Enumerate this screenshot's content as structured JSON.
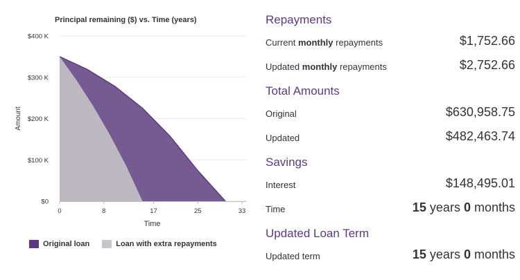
{
  "chart_data": {
    "type": "area",
    "title": "Principal remaining ($) vs. Time (years)",
    "xlabel": "Time",
    "ylabel": "Amount",
    "xlim": [
      0,
      33
    ],
    "ylim": [
      0,
      400000
    ],
    "x_ticks": [
      0,
      8,
      17,
      25,
      33
    ],
    "y_ticks": [
      {
        "value": 0,
        "label": "$0"
      },
      {
        "value": 100000,
        "label": "$100 K"
      },
      {
        "value": 200000,
        "label": "$200 K"
      },
      {
        "value": 300000,
        "label": "$300 K"
      },
      {
        "value": 400000,
        "label": "$400 K"
      }
    ],
    "grid": true,
    "legend_position": "bottom-left",
    "series": [
      {
        "name": "Original loan",
        "color": "#765b93",
        "x": [
          0,
          5,
          10,
          15,
          20,
          25,
          30
        ],
        "y": [
          350000,
          319000,
          278000,
          225000,
          157000,
          74000,
          0
        ]
      },
      {
        "name": "Loan with extra repayments",
        "color": "#bcb7c1",
        "x": [
          0,
          3,
          6,
          9,
          12,
          15
        ],
        "y": [
          350000,
          294000,
          232000,
          163000,
          87000,
          0
        ]
      }
    ]
  },
  "panel": {
    "repayments": {
      "title": "Repayments",
      "current": {
        "pre": "Current ",
        "bold": "monthly",
        "post": " repayments",
        "value": "$1,752.66"
      },
      "updated": {
        "pre": "Updated ",
        "bold": "monthly",
        "post": " repayments",
        "value": "$2,752.66"
      }
    },
    "totals": {
      "title": "Total Amounts",
      "original": {
        "label": "Original",
        "value": "$630,958.75"
      },
      "updated": {
        "label": "Updated",
        "value": "$482,463.74"
      }
    },
    "savings": {
      "title": "Savings",
      "interest": {
        "label": "Interest",
        "value": "$148,495.01"
      },
      "time": {
        "label": "Time",
        "years": "15",
        "years_unit": " years ",
        "months": "0",
        "months_unit": " months"
      }
    },
    "term": {
      "title": "Updated Loan Term",
      "updated": {
        "label": "Updated term",
        "years": "15",
        "years_unit": " years ",
        "months": "0",
        "months_unit": " months"
      }
    }
  }
}
